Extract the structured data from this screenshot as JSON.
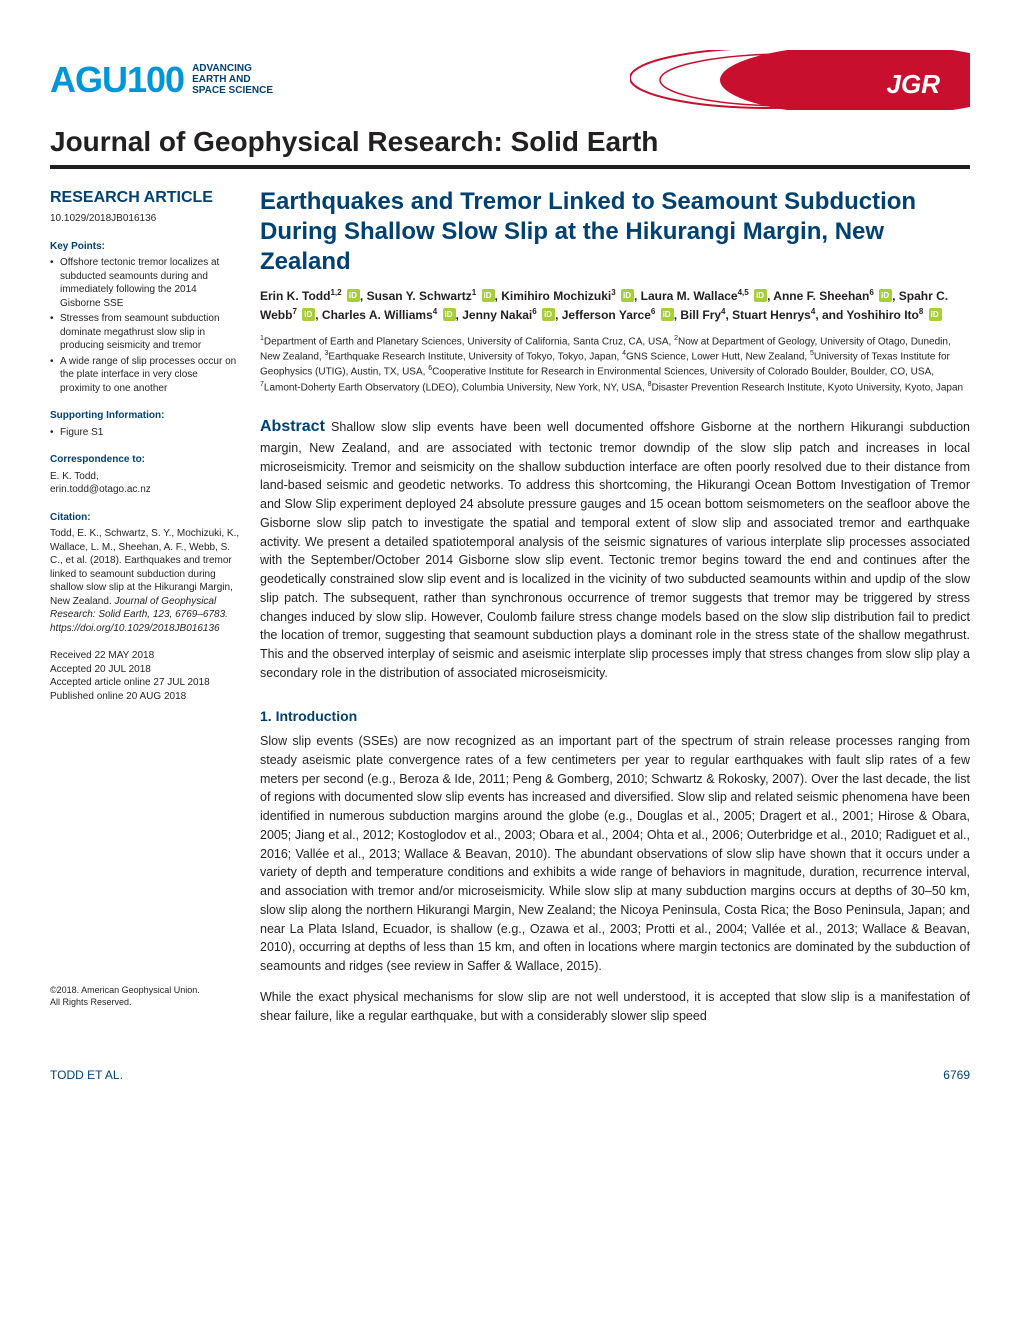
{
  "header": {
    "agu_text": "AGU100",
    "agu_tagline_l1": "ADVANCING",
    "agu_tagline_l2": "EARTH AND",
    "agu_tagline_l3": "SPACE SCIENCE",
    "jgr_badge": "JGR",
    "journal_title": "Journal of Geophysical Research: Solid Earth"
  },
  "sidebar": {
    "article_type": "RESEARCH ARTICLE",
    "doi": "10.1029/2018JB016136",
    "keypoints_heading": "Key Points:",
    "keypoints": [
      "Offshore tectonic tremor localizes at subducted seamounts during and immediately following the 2014 Gisborne SSE",
      "Stresses from seamount subduction dominate megathrust slow slip in producing seismicity and tremor",
      "A wide range of slip processes occur on the plate interface in very close proximity to one another"
    ],
    "supporting_heading": "Supporting Information:",
    "supporting_items": [
      "Figure S1"
    ],
    "correspondence_heading": "Correspondence to:",
    "correspondence_name": "E. K. Todd,",
    "correspondence_email": "erin.todd@otago.ac.nz",
    "citation_heading": "Citation:",
    "citation_text": "Todd, E. K., Schwartz, S. Y., Mochizuki, K., Wallace, L. M., Sheehan, A. F., Webb, S. C., et al. (2018). Earthquakes and tremor linked to seamount subduction during shallow slow slip at the Hikurangi Margin, New Zealand. ",
    "citation_journal": "Journal of Geophysical Research: Solid Earth",
    "citation_vol": ", 123, 6769–6783. https://doi.org/10.1029/2018JB016136",
    "dates_l1": "Received 22 MAY 2018",
    "dates_l2": "Accepted 20 JUL 2018",
    "dates_l3": "Accepted article online 27 JUL 2018",
    "dates_l4": "Published online 20 AUG 2018",
    "copyright_l1": "©2018. American Geophysical Union.",
    "copyright_l2": "All Rights Reserved."
  },
  "main": {
    "title": "Earthquakes and Tremor Linked to Seamount Subduction During Shallow Slow Slip at the Hikurangi Margin, New Zealand",
    "affiliations": "<sup>1</sup>Department of Earth and Planetary Sciences, University of California, Santa Cruz, CA, USA, <sup>2</sup>Now at Department of Geology, University of Otago, Dunedin, New Zealand, <sup>3</sup>Earthquake Research Institute, University of Tokyo, Tokyo, Japan, <sup>4</sup>GNS Science, Lower Hutt, New Zealand, <sup>5</sup>University of Texas Institute for Geophysics (UTIG), Austin, TX, USA, <sup>6</sup>Cooperative Institute for Research in Environmental Sciences, University of Colorado Boulder, Boulder, CO, USA, <sup>7</sup>Lamont-Doherty Earth Observatory (LDEO), Columbia University, New York, NY, USA, <sup>8</sup>Disaster Prevention Research Institute, Kyoto University, Kyoto, Japan",
    "abstract_label": "Abstract",
    "abstract": " Shallow slow slip events have been well documented offshore Gisborne at the northern Hikurangi subduction margin, New Zealand, and are associated with tectonic tremor downdip of the slow slip patch and increases in local microseismicity. Tremor and seismicity on the shallow subduction interface are often poorly resolved due to their distance from land-based seismic and geodetic networks. To address this shortcoming, the Hikurangi Ocean Bottom Investigation of Tremor and Slow Slip experiment deployed 24 absolute pressure gauges and 15 ocean bottom seismometers on the seafloor above the Gisborne slow slip patch to investigate the spatial and temporal extent of slow slip and associated tremor and earthquake activity. We present a detailed spatiotemporal analysis of the seismic signatures of various interplate slip processes associated with the September/October 2014 Gisborne slow slip event. Tectonic tremor begins toward the end and continues after the geodetically constrained slow slip event and is localized in the vicinity of two subducted seamounts within and updip of the slow slip patch. The subsequent, rather than synchronous occurrence of tremor suggests that tremor may be triggered by stress changes induced by slow slip. However, Coulomb failure stress change models based on the slow slip distribution fail to predict the location of tremor, suggesting that seamount subduction plays a dominant role in the stress state of the shallow megathrust. This and the observed interplay of seismic and aseismic interplate slip processes imply that stress changes from slow slip play a secondary role in the distribution of associated microseismicity.",
    "intro_heading": "1. Introduction",
    "intro_p1": "Slow slip events (SSEs) are now recognized as an important part of the spectrum of strain release processes ranging from steady aseismic plate convergence rates of a few centimeters per year to regular earthquakes with fault slip rates of a few meters per second (e.g., Beroza & Ide, 2011; Peng & Gomberg, 2010; Schwartz & Rokosky, 2007). Over the last decade, the list of regions with documented slow slip events has increased and diversified. Slow slip and related seismic phenomena have been identified in numerous subduction margins around the globe (e.g., Douglas et al., 2005; Dragert et al., 2001; Hirose & Obara, 2005; Jiang et al., 2012; Kostoglodov et al., 2003; Obara et al., 2004; Ohta et al., 2006; Outerbridge et al., 2010; Radiguet et al., 2016; Vallée et al., 2013; Wallace & Beavan, 2010). The abundant observations of slow slip have shown that it occurs under a variety of depth and temperature conditions and exhibits a wide range of behaviors in magnitude, duration, recurrence interval, and association with tremor and/or microseismicity. While slow slip at many subduction margins occurs at depths of 30–50 km, slow slip along the northern Hikurangi Margin, New Zealand; the Nicoya Peninsula, Costa Rica; the Boso Peninsula, Japan; and near La Plata Island, Ecuador, is shallow (e.g., Ozawa et al., 2003; Protti et al., 2004; Vallée et al., 2013; Wallace & Beavan, 2010), occurring at depths of less than 15 km, and often in locations where margin tectonics are dominated by the subduction of seamounts and ridges (see review in Saffer & Wallace, 2015).",
    "intro_p2": "While the exact physical mechanisms for slow slip are not well understood, it is accepted that slow slip is a manifestation of shear failure, like a regular earthquake, but with a considerably slower slip speed"
  },
  "footer": {
    "authors": "TODD ET AL.",
    "page": "6769"
  },
  "colors": {
    "agu_blue": "#0096d6",
    "dark_blue": "#004174",
    "jgr_red": "#c8102e",
    "orcid_green": "#a6ce39",
    "text": "#231f20"
  }
}
